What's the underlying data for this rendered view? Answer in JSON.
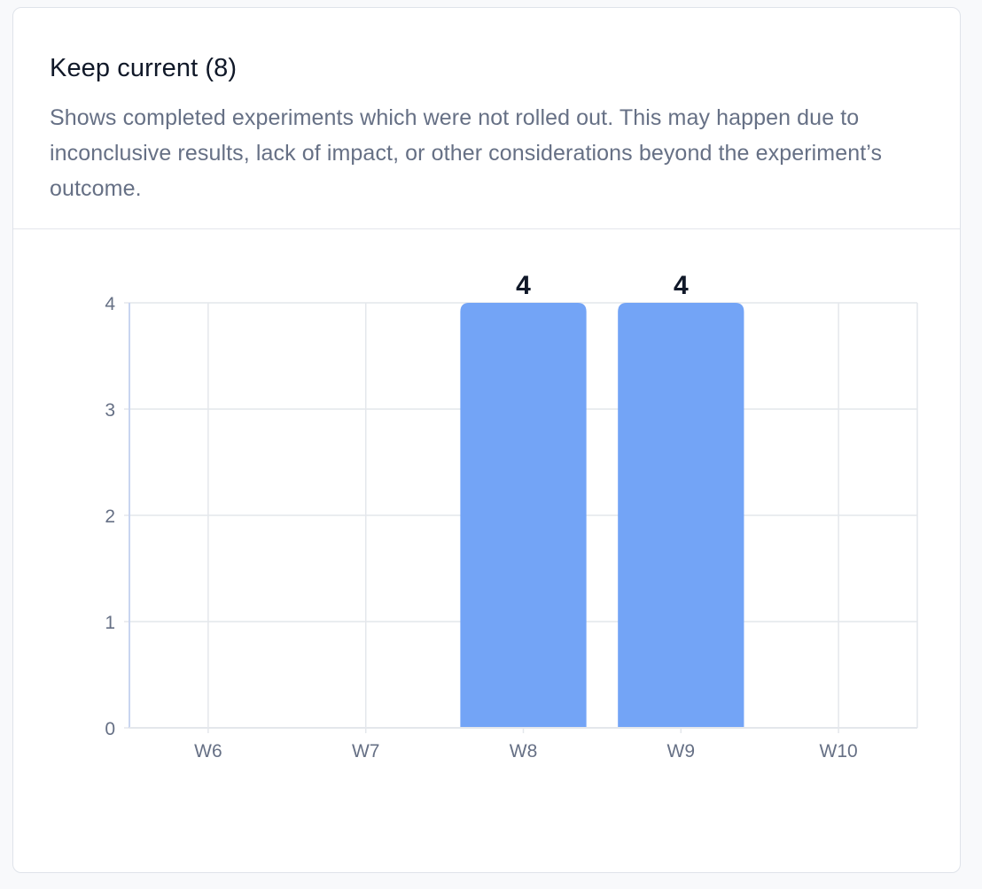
{
  "card": {
    "title": "Keep current (8)",
    "description": "Shows completed experiments which were not rolled out. This may happen due to inconclusive results, lack of impact, or other considerations beyond the experiment’s outcome."
  },
  "colors": {
    "bar": "#73a4f6",
    "grid": "#e4e7ec",
    "axis": "#c9d5f0",
    "tick_text": "#667085",
    "value_label": "#101828"
  },
  "chart_data": {
    "type": "bar",
    "title": "",
    "xlabel": "",
    "ylabel": "",
    "categories": [
      "W6",
      "W7",
      "W8",
      "W9",
      "W10"
    ],
    "values": [
      0,
      0,
      4,
      4,
      0
    ],
    "ylim": [
      0,
      4
    ],
    "yticks": [
      0,
      1,
      2,
      3,
      4
    ],
    "data_labels": [
      "",
      "",
      "4",
      "4",
      ""
    ],
    "grid": true,
    "legend": "none"
  }
}
